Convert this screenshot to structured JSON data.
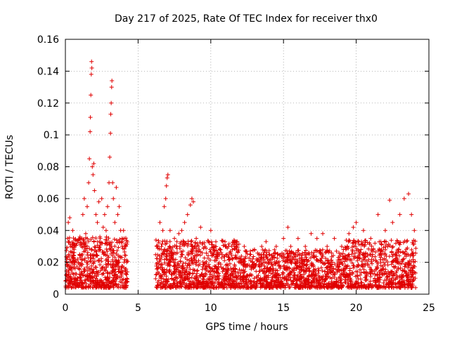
{
  "chart_data": {
    "type": "scatter",
    "title": "Day 217 of 2025, Rate Of TEC Index for receiver thx0",
    "xlabel": "GPS time / hours",
    "ylabel": "ROTI / TECUs",
    "xlim": [
      0,
      25
    ],
    "ylim": [
      0,
      0.16
    ],
    "x_ticks": [
      0,
      5,
      10,
      15,
      20,
      25
    ],
    "y_ticks": [
      0,
      0.02,
      0.04,
      0.06,
      0.08,
      0.1,
      0.12,
      0.14,
      0.16
    ],
    "x_tick_labels": [
      "0",
      "5",
      "10",
      "15",
      "20",
      "25"
    ],
    "y_tick_labels": [
      "0",
      "0.02",
      "0.04",
      "0.06",
      "0.08",
      "0.1",
      "0.12",
      "0.14",
      "0.16"
    ],
    "grid": true,
    "marker": "+",
    "color": "#e00000",
    "data_gap_hours": [
      4.3,
      6.2
    ],
    "series": [
      {
        "values": [
          [
            0.05,
            0.012
          ],
          [
            0.1,
            0.022
          ],
          [
            0.15,
            0.035
          ],
          [
            0.2,
            0.045
          ],
          [
            0.25,
            0.018
          ],
          [
            0.3,
            0.048
          ],
          [
            0.35,
            0.03
          ],
          [
            0.4,
            0.015
          ],
          [
            0.5,
            0.04
          ],
          [
            0.6,
            0.028
          ],
          [
            0.7,
            0.01
          ],
          [
            0.8,
            0.032
          ],
          [
            0.9,
            0.02
          ],
          [
            1.0,
            0.036
          ],
          [
            1.1,
            0.014
          ],
          [
            1.2,
            0.05
          ],
          [
            1.3,
            0.06
          ],
          [
            1.4,
            0.038
          ],
          [
            1.5,
            0.055
          ],
          [
            1.6,
            0.07
          ],
          [
            1.65,
            0.085
          ],
          [
            1.7,
            0.102
          ],
          [
            1.72,
            0.111
          ],
          [
            1.75,
            0.125
          ],
          [
            1.78,
            0.138
          ],
          [
            1.8,
            0.146
          ],
          [
            1.82,
            0.142
          ],
          [
            1.85,
            0.08
          ],
          [
            1.9,
            0.075
          ],
          [
            1.95,
            0.082
          ],
          [
            2.0,
            0.065
          ],
          [
            2.1,
            0.05
          ],
          [
            2.2,
            0.045
          ],
          [
            2.3,
            0.058
          ],
          [
            2.4,
            0.035
          ],
          [
            2.5,
            0.06
          ],
          [
            2.6,
            0.042
          ],
          [
            2.7,
            0.05
          ],
          [
            2.8,
            0.04
          ],
          [
            2.9,
            0.055
          ],
          [
            3.0,
            0.07
          ],
          [
            3.05,
            0.086
          ],
          [
            3.1,
            0.101
          ],
          [
            3.12,
            0.113
          ],
          [
            3.15,
            0.12
          ],
          [
            3.18,
            0.13
          ],
          [
            3.2,
            0.134
          ],
          [
            3.25,
            0.07
          ],
          [
            3.3,
            0.06
          ],
          [
            3.4,
            0.045
          ],
          [
            3.5,
            0.067
          ],
          [
            3.6,
            0.05
          ],
          [
            3.7,
            0.055
          ],
          [
            3.8,
            0.04
          ],
          [
            3.9,
            0.035
          ],
          [
            4.0,
            0.04
          ],
          [
            4.1,
            0.03
          ],
          [
            4.2,
            0.02
          ],
          [
            6.3,
            0.03
          ],
          [
            6.5,
            0.045
          ],
          [
            6.7,
            0.04
          ],
          [
            6.8,
            0.055
          ],
          [
            6.9,
            0.06
          ],
          [
            6.95,
            0.068
          ],
          [
            7.0,
            0.073
          ],
          [
            7.05,
            0.075
          ],
          [
            7.2,
            0.04
          ],
          [
            7.5,
            0.035
          ],
          [
            7.8,
            0.038
          ],
          [
            8.0,
            0.04
          ],
          [
            8.2,
            0.045
          ],
          [
            8.4,
            0.05
          ],
          [
            8.6,
            0.056
          ],
          [
            8.7,
            0.06
          ],
          [
            8.8,
            0.058
          ],
          [
            9.0,
            0.035
          ],
          [
            9.3,
            0.042
          ],
          [
            9.6,
            0.03
          ],
          [
            10.0,
            0.04
          ],
          [
            10.3,
            0.03
          ],
          [
            10.6,
            0.025
          ],
          [
            11.0,
            0.03
          ],
          [
            11.5,
            0.022
          ],
          [
            12.0,
            0.02
          ],
          [
            12.3,
            0.03
          ],
          [
            12.7,
            0.025
          ],
          [
            13.0,
            0.028
          ],
          [
            13.5,
            0.03
          ],
          [
            13.8,
            0.033
          ],
          [
            14.0,
            0.025
          ],
          [
            14.5,
            0.03
          ],
          [
            15.0,
            0.035
          ],
          [
            15.3,
            0.042
          ],
          [
            15.5,
            0.03
          ],
          [
            16.0,
            0.035
          ],
          [
            16.5,
            0.03
          ],
          [
            16.9,
            0.038
          ],
          [
            17.3,
            0.035
          ],
          [
            17.7,
            0.038
          ],
          [
            18.0,
            0.03
          ],
          [
            18.5,
            0.035
          ],
          [
            19.0,
            0.03
          ],
          [
            19.5,
            0.038
          ],
          [
            19.8,
            0.042
          ],
          [
            20.0,
            0.045
          ],
          [
            20.5,
            0.04
          ],
          [
            21.0,
            0.035
          ],
          [
            21.5,
            0.05
          ],
          [
            22.0,
            0.04
          ],
          [
            22.3,
            0.059
          ],
          [
            22.5,
            0.045
          ],
          [
            23.0,
            0.05
          ],
          [
            23.3,
            0.06
          ],
          [
            23.6,
            0.063
          ],
          [
            23.8,
            0.05
          ],
          [
            24.0,
            0.04
          ]
        ]
      }
    ]
  }
}
